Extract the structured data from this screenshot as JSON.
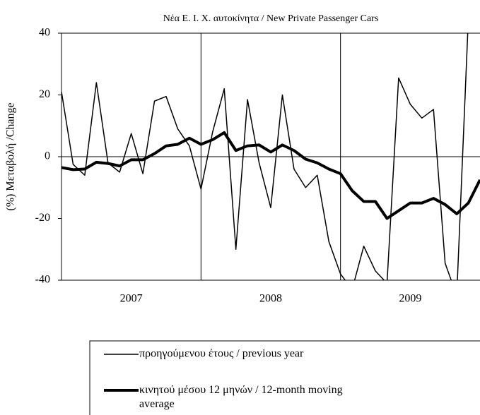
{
  "chart_data": {
    "type": "line",
    "title": "Νέα Ε. Ι. Χ. αυτοκίνητα / New Private Passenger Cars",
    "y_label": "(%) Μεταβολή /Change",
    "categories": [
      null,
      null,
      null,
      null,
      null,
      null,
      null,
      null,
      null,
      null,
      null,
      null,
      null,
      null,
      null,
      null,
      null,
      null,
      null,
      null,
      null,
      null,
      null,
      null,
      null,
      null,
      null,
      null,
      null,
      null,
      null,
      null,
      null,
      null,
      null,
      null,
      null
    ],
    "year_labels": [
      "2007",
      "2008",
      "2009"
    ],
    "series": [
      {
        "name": "προηγούμενου έτους / previous year",
        "color": "#000000",
        "width": 1.5,
        "values": [
          21,
          -2.5,
          -6,
          24,
          -2,
          -5,
          7.5,
          -5.5,
          18,
          19.5,
          9,
          3.5,
          -10.5,
          8,
          22,
          -30,
          18.5,
          -2,
          -16.5,
          20,
          -4,
          -10,
          -6,
          -27.5,
          -38,
          -43,
          -29,
          -37,
          -41,
          25.5,
          17,
          12.5,
          15.3,
          -34.5,
          -45,
          45,
          null
        ]
      },
      {
        "name": "κινητού μέσου 12 μηνών / 12-month moving average",
        "color": "#000000",
        "width": 4,
        "values": [
          -3.5,
          -4.2,
          -4,
          -1.8,
          -2.2,
          -3,
          -1,
          -1,
          1,
          3.5,
          4,
          6,
          4,
          5.5,
          7.8,
          2,
          3.5,
          3.8,
          1.5,
          3.8,
          2,
          -0.8,
          -2,
          -4,
          -5.5,
          -11,
          -14.5,
          -14.5,
          -20,
          -17.5,
          -15,
          -15,
          -13.5,
          -15.5,
          -18.5,
          -15,
          -7.5
        ]
      }
    ],
    "ylim": [
      -40,
      40
    ],
    "yticks": [
      -40,
      -20,
      0,
      20,
      40
    ]
  }
}
